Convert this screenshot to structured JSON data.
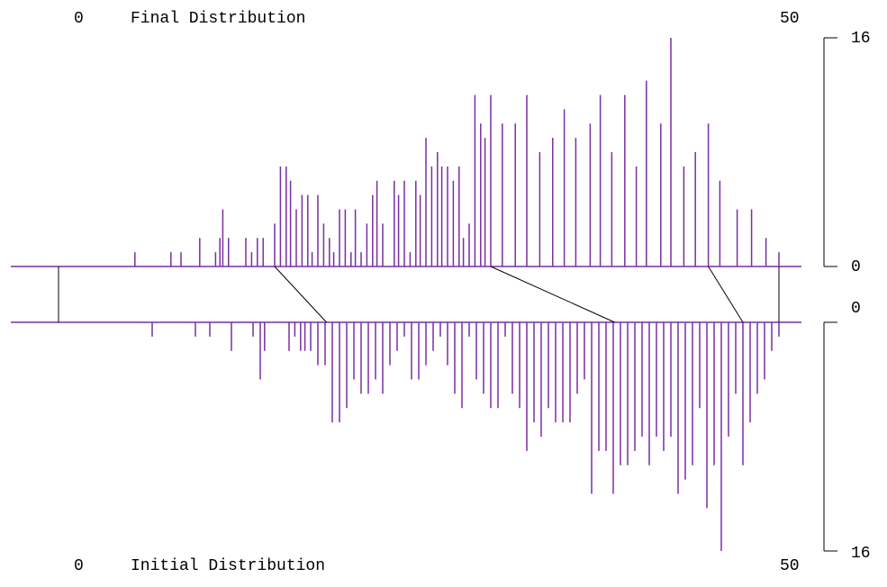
{
  "chart_data": {
    "type": "mirrored_distribution",
    "xlim": [
      0,
      50
    ],
    "ylim": [
      0,
      16
    ],
    "series": [
      {
        "name": "Final Distribution",
        "color": "#7a2ea0",
        "x": [
          5.3,
          7.8,
          8.5,
          9.8,
          10.9,
          11.2,
          11.4,
          11.8,
          13.0,
          13.4,
          13.8,
          14.2,
          15.0,
          15.4,
          15.8,
          16.1,
          16.5,
          16.9,
          17.3,
          17.6,
          18.0,
          18.4,
          18.8,
          19.1,
          19.5,
          19.9,
          20.3,
          20.6,
          21.0,
          21.4,
          21.8,
          22.1,
          22.5,
          23.3,
          23.6,
          24.0,
          24.4,
          24.8,
          25.1,
          25.5,
          25.9,
          26.3,
          26.6,
          27.0,
          27.4,
          27.8,
          28.1,
          28.5,
          28.9,
          29.3,
          29.6,
          30.0,
          30.8,
          31.7,
          32.5,
          33.4,
          34.3,
          35.1,
          35.9,
          36.9,
          37.6,
          38.4,
          39.3,
          40.1,
          40.8,
          41.8,
          42.5,
          43.4,
          44.2,
          45.1,
          45.9,
          47.1,
          48.1,
          49.1,
          50.0
        ],
        "values": [
          1,
          1,
          1,
          2,
          1,
          2,
          4,
          2,
          2,
          1,
          2,
          2,
          3,
          7,
          7,
          6,
          4,
          5,
          5,
          1,
          5,
          3,
          2,
          1,
          4,
          4,
          1,
          4,
          1,
          3,
          5,
          6,
          3,
          6,
          5,
          6,
          1,
          6,
          5,
          9,
          7,
          8,
          7,
          7,
          6,
          7,
          2,
          3,
          12,
          10,
          9,
          12,
          10,
          10,
          12,
          8,
          9,
          11,
          9,
          10,
          12,
          8,
          12,
          7,
          13,
          10,
          16,
          7,
          8,
          10,
          6,
          4,
          4,
          2,
          1
        ]
      },
      {
        "name": "Initial Distribution",
        "color": "#7a2ea0",
        "x": [
          6.5,
          9.5,
          10.5,
          12.0,
          13.5,
          14.0,
          14.3,
          16.0,
          16.4,
          16.8,
          17.1,
          17.5,
          18.0,
          18.5,
          19.0,
          19.5,
          20.0,
          20.5,
          21.0,
          21.5,
          22.0,
          22.5,
          23.0,
          23.5,
          24.0,
          24.5,
          25.0,
          25.5,
          26.0,
          26.5,
          27.0,
          27.5,
          28.0,
          28.5,
          29.0,
          29.5,
          30.0,
          30.5,
          31.0,
          31.5,
          32.0,
          32.5,
          33.0,
          33.5,
          34.0,
          34.5,
          35.0,
          35.5,
          36.0,
          36.5,
          37.0,
          37.5,
          38.0,
          38.5,
          39.0,
          39.5,
          40.0,
          40.5,
          41.0,
          41.5,
          42.0,
          42.5,
          43.0,
          43.5,
          44.0,
          44.5,
          45.0,
          45.5,
          46.0,
          46.5,
          47.0,
          47.5,
          48.0,
          48.5,
          49.0,
          49.5,
          50.0
        ],
        "values": [
          1,
          1,
          1,
          2,
          1,
          4,
          2,
          2,
          1,
          2,
          2,
          2,
          3,
          3,
          7,
          7,
          6,
          4,
          5,
          5,
          4,
          5,
          3,
          2,
          1,
          4,
          4,
          3,
          2,
          1,
          3,
          5,
          6,
          1,
          4,
          5,
          6,
          6,
          1,
          5,
          6,
          9,
          7,
          8,
          6,
          7,
          7,
          7,
          5,
          4,
          12,
          9,
          9,
          12,
          10,
          10,
          9,
          8,
          10,
          8,
          9,
          8,
          12,
          11,
          10,
          6,
          13,
          10,
          16,
          8,
          5,
          10,
          7,
          5,
          4,
          2,
          1
        ]
      }
    ],
    "mapping": [
      {
        "final": 0,
        "initial": 0
      },
      {
        "final": 15.0,
        "initial": 18.6
      },
      {
        "final": 30.0,
        "initial": 38.6
      },
      {
        "final": 45.1,
        "initial": 47.5
      },
      {
        "final": 50,
        "initial": 50
      }
    ]
  }
}
